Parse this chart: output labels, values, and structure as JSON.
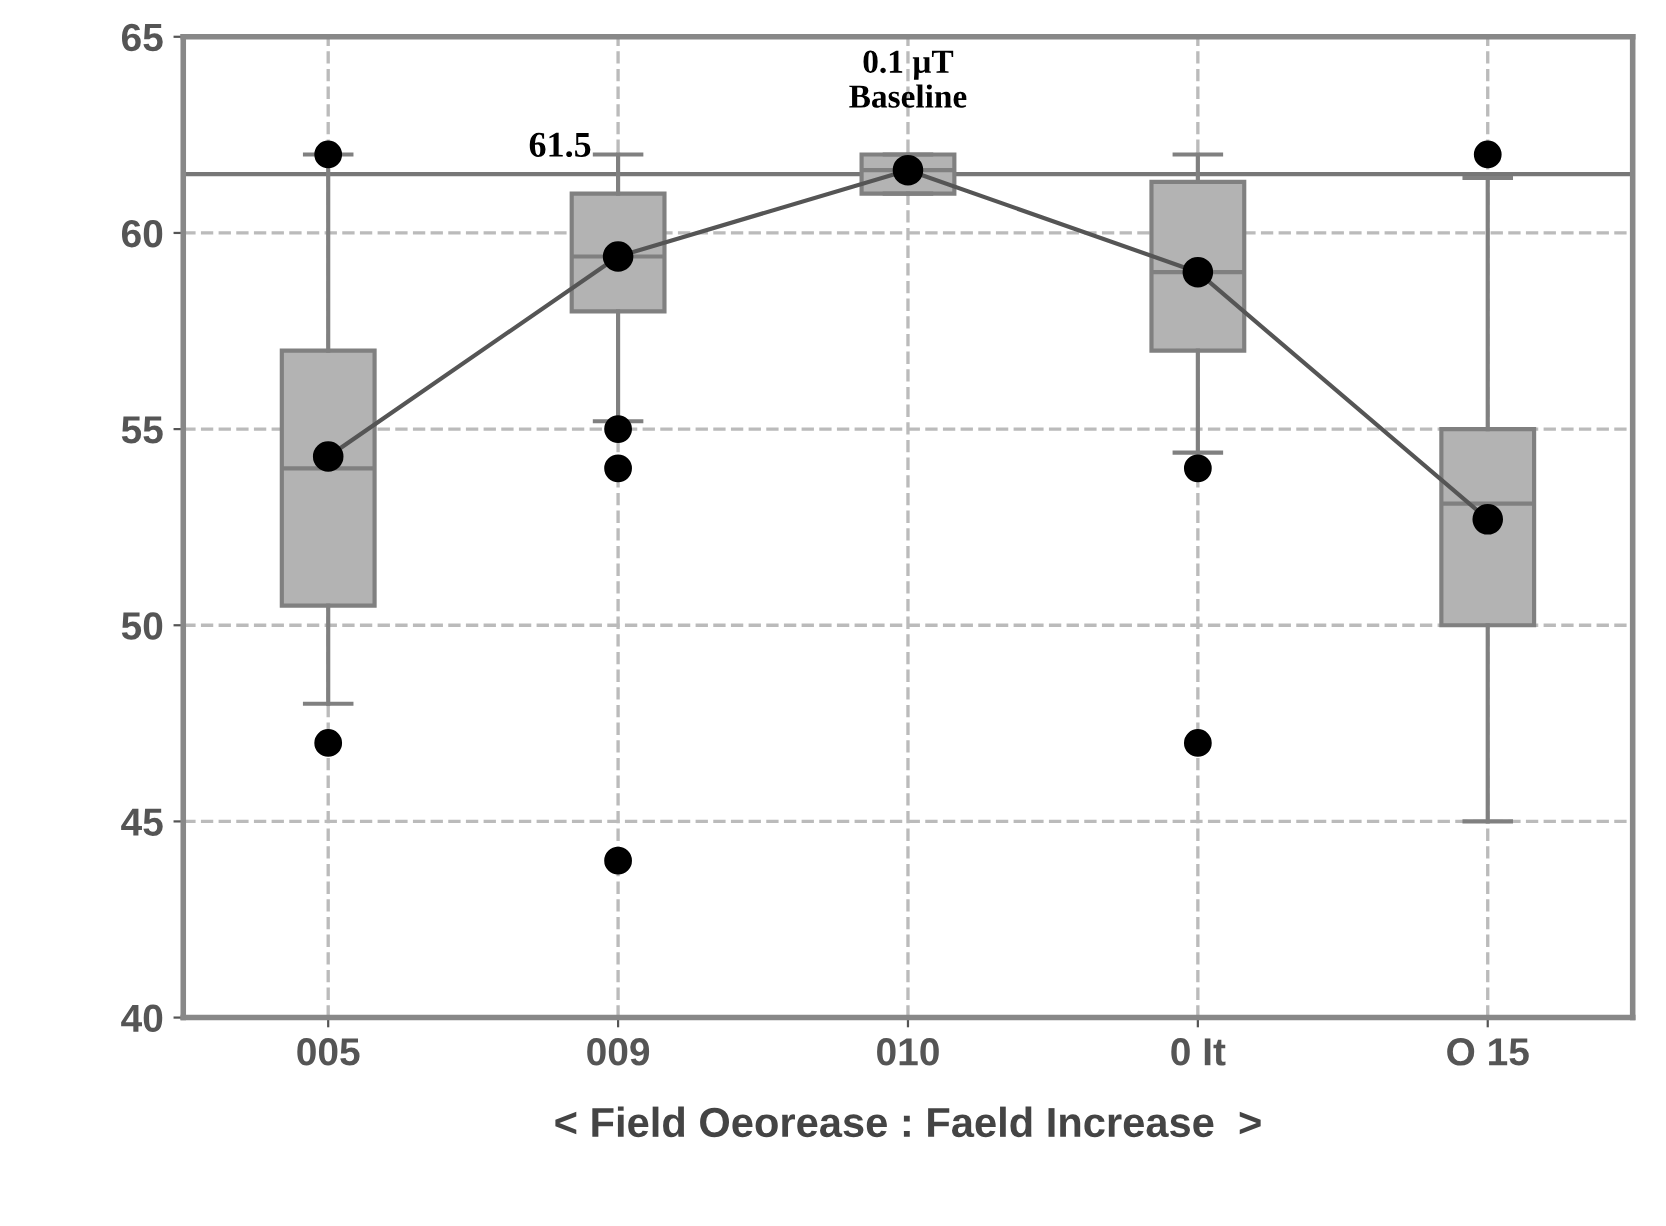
{
  "chart_data": {
    "type": "box",
    "xlabel": "< Field Oeorease : Faeld Increase  >",
    "categories": [
      "005",
      "009",
      "010",
      "0 It",
      "O 15"
    ],
    "series": [
      {
        "color": "#b3b3b3",
        "boxes": [
          {
            "low": 48,
            "q1": 50.5,
            "median": 54,
            "q3": 57,
            "high": 62,
            "outliers": [
              47,
              62
            ]
          },
          {
            "low": 55.2,
            "q1": 58,
            "median": 59.4,
            "q3": 61,
            "high": 62,
            "outliers": [
              55,
              54,
              44
            ]
          },
          {
            "low": 61,
            "q1": 61,
            "median": 61.6,
            "q3": 62,
            "high": 62
          },
          {
            "low": 54.4,
            "q1": 57,
            "median": 59,
            "q3": 61.3,
            "high": 62,
            "outliers": [
              54,
              47
            ]
          },
          {
            "low": 45,
            "q1": 50,
            "median": 53.1,
            "q3": 55,
            "high": 61.4,
            "outliers": [
              62
            ]
          }
        ]
      },
      {
        "type": "line",
        "color": "#555555",
        "marker": "circle",
        "values": [
          54.3,
          59.4,
          61.6,
          59,
          52.7
        ]
      }
    ],
    "ref_lines": [
      {
        "axis": "y",
        "value": 61.5,
        "label": "61.5",
        "color": "#777777"
      }
    ],
    "annotations": [
      {
        "text": "0.1 µT\nBaseline",
        "x": "010",
        "y": 61.6
      }
    ],
    "ylim": [
      40,
      65
    ],
    "yticks": [
      40,
      45,
      50,
      55,
      60,
      65
    ],
    "grid": true
  }
}
